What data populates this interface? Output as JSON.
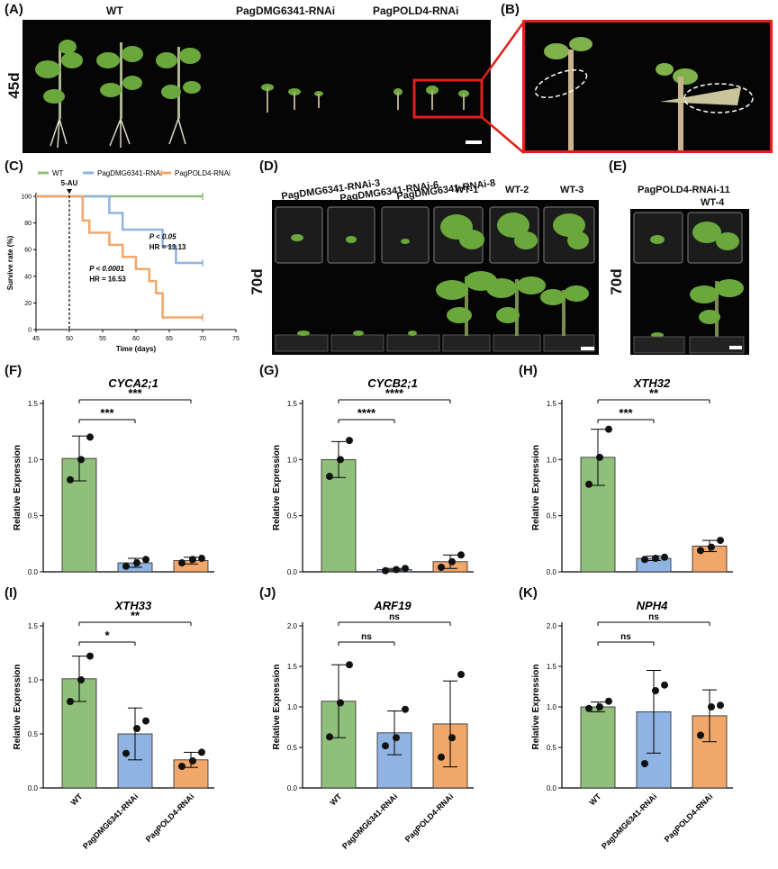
{
  "panels": {
    "A": "(A)",
    "B": "(B)",
    "C": "(C)",
    "D": "(D)",
    "E": "(E)",
    "F": "(F)",
    "G": "(G)",
    "H": "(H)",
    "I": "(I)",
    "J": "(J)",
    "K": "(K)"
  },
  "photo_a": {
    "labels": [
      "WT",
      "PagDMG6341-RNAi",
      "PagPOLD4-RNAi"
    ],
    "side_label": "45d"
  },
  "photo_d": {
    "labels": [
      "PagDMG6341-RNAi-3",
      "PagDMG6341-RNAi-6",
      "PagDMG6341-RNAi-8",
      "WT-1",
      "WT-2",
      "WT-3"
    ],
    "side_label": "70d"
  },
  "photo_e": {
    "labels": [
      "PagPOLD4-RNAi-11",
      "WT-4"
    ],
    "side_label": "70d"
  },
  "colors": {
    "wt": "#8fbf7a",
    "dmg": "#8fb4e3",
    "pold": "#f2a76a",
    "highlight": "#e0201b"
  },
  "survival": {
    "legend": [
      "WT",
      "PagDMG6341-RNAi",
      "PagPOLD4-RNAi"
    ],
    "xlabel": "Time (days)",
    "ylabel": "Survive rate (%)",
    "xticks": [
      "45",
      "50",
      "55",
      "60",
      "65",
      "70",
      "75"
    ],
    "yticks": [
      "0",
      "20",
      "40",
      "60",
      "80",
      "100"
    ],
    "marker": "5-AU",
    "stat1_p": "P < 0.05",
    "stat1_hr": "HR = 13.13",
    "stat2_p": "P < 0.0001",
    "stat2_hr": "HR = 16.53"
  },
  "chart_data": [
    {
      "type": "line",
      "xlabel": "Time (days)",
      "ylabel": "Survive rate (%)",
      "xlim": [
        45,
        75
      ],
      "ylim": [
        0,
        100
      ],
      "marker_x": 50,
      "series": [
        {
          "name": "WT",
          "steps": [
            [
              45,
              100
            ],
            [
              70,
              100
            ]
          ]
        },
        {
          "name": "PagDMG6341-RNAi",
          "steps": [
            [
              45,
              100
            ],
            [
              56,
              100
            ],
            [
              56,
              87.5
            ],
            [
              58,
              87.5
            ],
            [
              58,
              75
            ],
            [
              64,
              75
            ],
            [
              64,
              62.5
            ],
            [
              66,
              62.5
            ],
            [
              66,
              50
            ],
            [
              70,
              50
            ]
          ]
        },
        {
          "name": "PagPOLD4-RNAi",
          "steps": [
            [
              45,
              100
            ],
            [
              52,
              100
            ],
            [
              52,
              81.8
            ],
            [
              53,
              81.8
            ],
            [
              53,
              72.7
            ],
            [
              56,
              72.7
            ],
            [
              56,
              63.6
            ],
            [
              58,
              63.6
            ],
            [
              58,
              54.5
            ],
            [
              60,
              54.5
            ],
            [
              60,
              45.5
            ],
            [
              62,
              45.5
            ],
            [
              62,
              36.4
            ],
            [
              63,
              36.4
            ],
            [
              63,
              27.3
            ],
            [
              64,
              27.3
            ],
            [
              64,
              9.1
            ],
            [
              70,
              9.1
            ]
          ]
        }
      ]
    },
    {
      "type": "bar",
      "title": "CYCA2;1",
      "ylabel": "Relative Expression",
      "categories": [
        "WT",
        "PagDMG6341-RNAi",
        "PagPOLD4-RNAi"
      ],
      "values": [
        1.01,
        0.08,
        0.1
      ],
      "errors": [
        0.2,
        0.04,
        0.03
      ],
      "points": [
        [
          0.82,
          1.0,
          1.2
        ],
        [
          0.05,
          0.08,
          0.11
        ],
        [
          0.08,
          0.11,
          0.12
        ]
      ],
      "ylim": [
        0,
        1.5
      ],
      "yticks": [
        "0.0",
        "0.5",
        "1.0",
        "1.5"
      ],
      "comparisons": [
        {
          "to": 1,
          "label": "***"
        },
        {
          "to": 2,
          "label": "***"
        }
      ]
    },
    {
      "type": "bar",
      "title": "CYCB2;1",
      "ylabel": "Relative Expression",
      "categories": [
        "WT",
        "PagDMG6341-RNAi",
        "PagPOLD4-RNAi"
      ],
      "values": [
        1.0,
        0.02,
        0.09
      ],
      "errors": [
        0.16,
        0.01,
        0.06
      ],
      "points": [
        [
          0.85,
          1.0,
          1.17
        ],
        [
          0.01,
          0.02,
          0.03
        ],
        [
          0.04,
          0.09,
          0.15
        ]
      ],
      "ylim": [
        0,
        1.5
      ],
      "yticks": [
        "0.0",
        "0.5",
        "1.0",
        "1.5"
      ],
      "comparisons": [
        {
          "to": 1,
          "label": "****"
        },
        {
          "to": 2,
          "label": "****"
        }
      ]
    },
    {
      "type": "bar",
      "title": "XTH32",
      "ylabel": "Relative Expression",
      "categories": [
        "WT",
        "PagDMG6341-RNAi",
        "PagPOLD4-RNAi"
      ],
      "values": [
        1.02,
        0.12,
        0.23
      ],
      "errors": [
        0.25,
        0.02,
        0.05
      ],
      "points": [
        [
          0.78,
          1.02,
          1.27
        ],
        [
          0.11,
          0.12,
          0.13
        ],
        [
          0.19,
          0.22,
          0.28
        ]
      ],
      "ylim": [
        0,
        1.5
      ],
      "yticks": [
        "0.0",
        "0.5",
        "1.0",
        "1.5"
      ],
      "comparisons": [
        {
          "to": 1,
          "label": "***"
        },
        {
          "to": 2,
          "label": "**"
        }
      ]
    },
    {
      "type": "bar",
      "title": "XTH33",
      "ylabel": "Relative Expression",
      "categories": [
        "WT",
        "PagDMG6341-RNAi",
        "PagPOLD4-RNAi"
      ],
      "values": [
        1.01,
        0.5,
        0.26
      ],
      "errors": [
        0.21,
        0.24,
        0.07
      ],
      "points": [
        [
          0.8,
          1.0,
          1.22
        ],
        [
          0.32,
          0.55,
          0.62
        ],
        [
          0.2,
          0.25,
          0.33
        ]
      ],
      "ylim": [
        0,
        1.5
      ],
      "yticks": [
        "0.0",
        "0.5",
        "1.0",
        "1.5"
      ],
      "comparisons": [
        {
          "to": 1,
          "label": "*"
        },
        {
          "to": 2,
          "label": "**"
        }
      ]
    },
    {
      "type": "bar",
      "title": "ARF19",
      "ylabel": "Relative Expression",
      "categories": [
        "WT",
        "PagDMG6341-RNAi",
        "PagPOLD4-RNAi"
      ],
      "values": [
        1.07,
        0.68,
        0.79
      ],
      "errors": [
        0.45,
        0.27,
        0.53
      ],
      "points": [
        [
          0.63,
          1.05,
          1.52
        ],
        [
          0.52,
          0.62,
          0.97
        ],
        [
          0.38,
          0.62,
          1.4
        ]
      ],
      "ylim": [
        0,
        2.0
      ],
      "yticks": [
        "0.0",
        "0.5",
        "1.0",
        "1.5",
        "2.0"
      ],
      "comparisons": [
        {
          "to": 1,
          "label": "ns"
        },
        {
          "to": 2,
          "label": "ns"
        }
      ]
    },
    {
      "type": "bar",
      "title": "NPH4",
      "ylabel": "Relative Expression",
      "categories": [
        "WT",
        "PagDMG6341-RNAi",
        "PagPOLD4-RNAi"
      ],
      "values": [
        1.0,
        0.94,
        0.89
      ],
      "errors": [
        0.06,
        0.51,
        0.32
      ],
      "points": [
        [
          0.98,
          1.0,
          1.07
        ],
        [
          0.3,
          1.2,
          1.27
        ],
        [
          0.65,
          1.0,
          1.02
        ]
      ],
      "ylim": [
        0,
        2.0
      ],
      "yticks": [
        "0.0",
        "0.5",
        "1.0",
        "1.5",
        "2.0"
      ],
      "comparisons": [
        {
          "to": 1,
          "label": "ns"
        },
        {
          "to": 2,
          "label": "ns"
        }
      ]
    }
  ]
}
